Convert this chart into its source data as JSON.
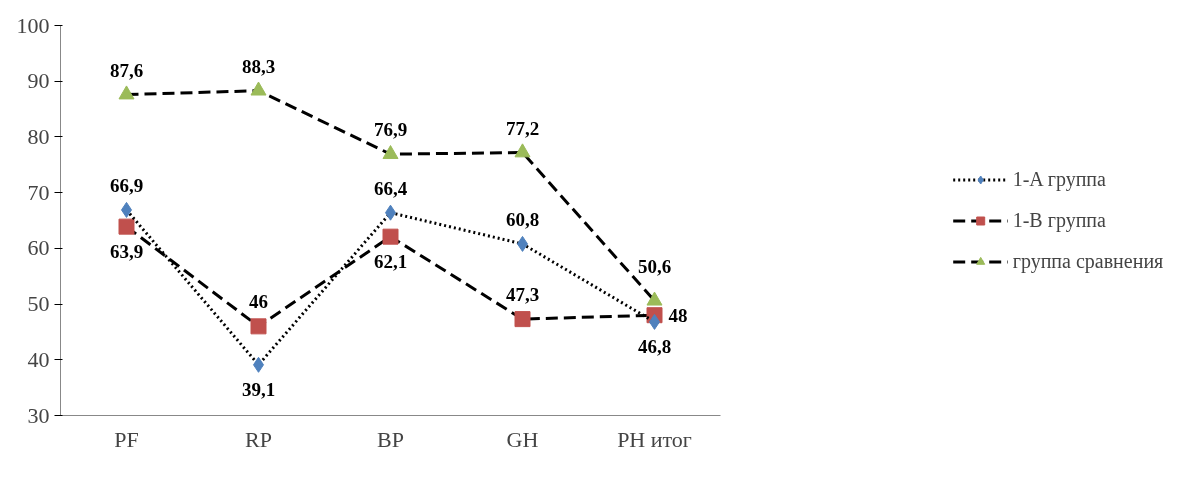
{
  "chart_data": {
    "type": "line",
    "categories": [
      "PF",
      "RP",
      "BP",
      "GH",
      "PH итог"
    ],
    "ylim": [
      30,
      100
    ],
    "yticks": [
      30,
      40,
      50,
      60,
      70,
      80,
      90,
      100
    ],
    "grid": false,
    "legend": "right",
    "series": [
      {
        "name": "1-A группа",
        "color": "#4f81bd",
        "marker": "diamond",
        "line_style": "dotted",
        "values": [
          66.9,
          39.1,
          66.4,
          60.8,
          46.8
        ],
        "value_labels": [
          "66,9",
          "39,1",
          "66,4",
          "60,8",
          "46,8"
        ]
      },
      {
        "name": "1-B группа",
        "color": "#c0504d",
        "marker": "square",
        "line_style": "dashed",
        "values": [
          63.9,
          46,
          62.1,
          47.3,
          48
        ],
        "value_labels": [
          "63,9",
          "46",
          "62,1",
          "47,3",
          "48"
        ]
      },
      {
        "name": "группа сравнения",
        "color": "#9bbb59",
        "marker": "triangle",
        "line_style": "dashed",
        "values": [
          87.6,
          88.3,
          76.9,
          77.2,
          50.6
        ],
        "value_labels": [
          "87,6",
          "88,3",
          "76,9",
          "77,2",
          "50,6"
        ]
      }
    ]
  }
}
